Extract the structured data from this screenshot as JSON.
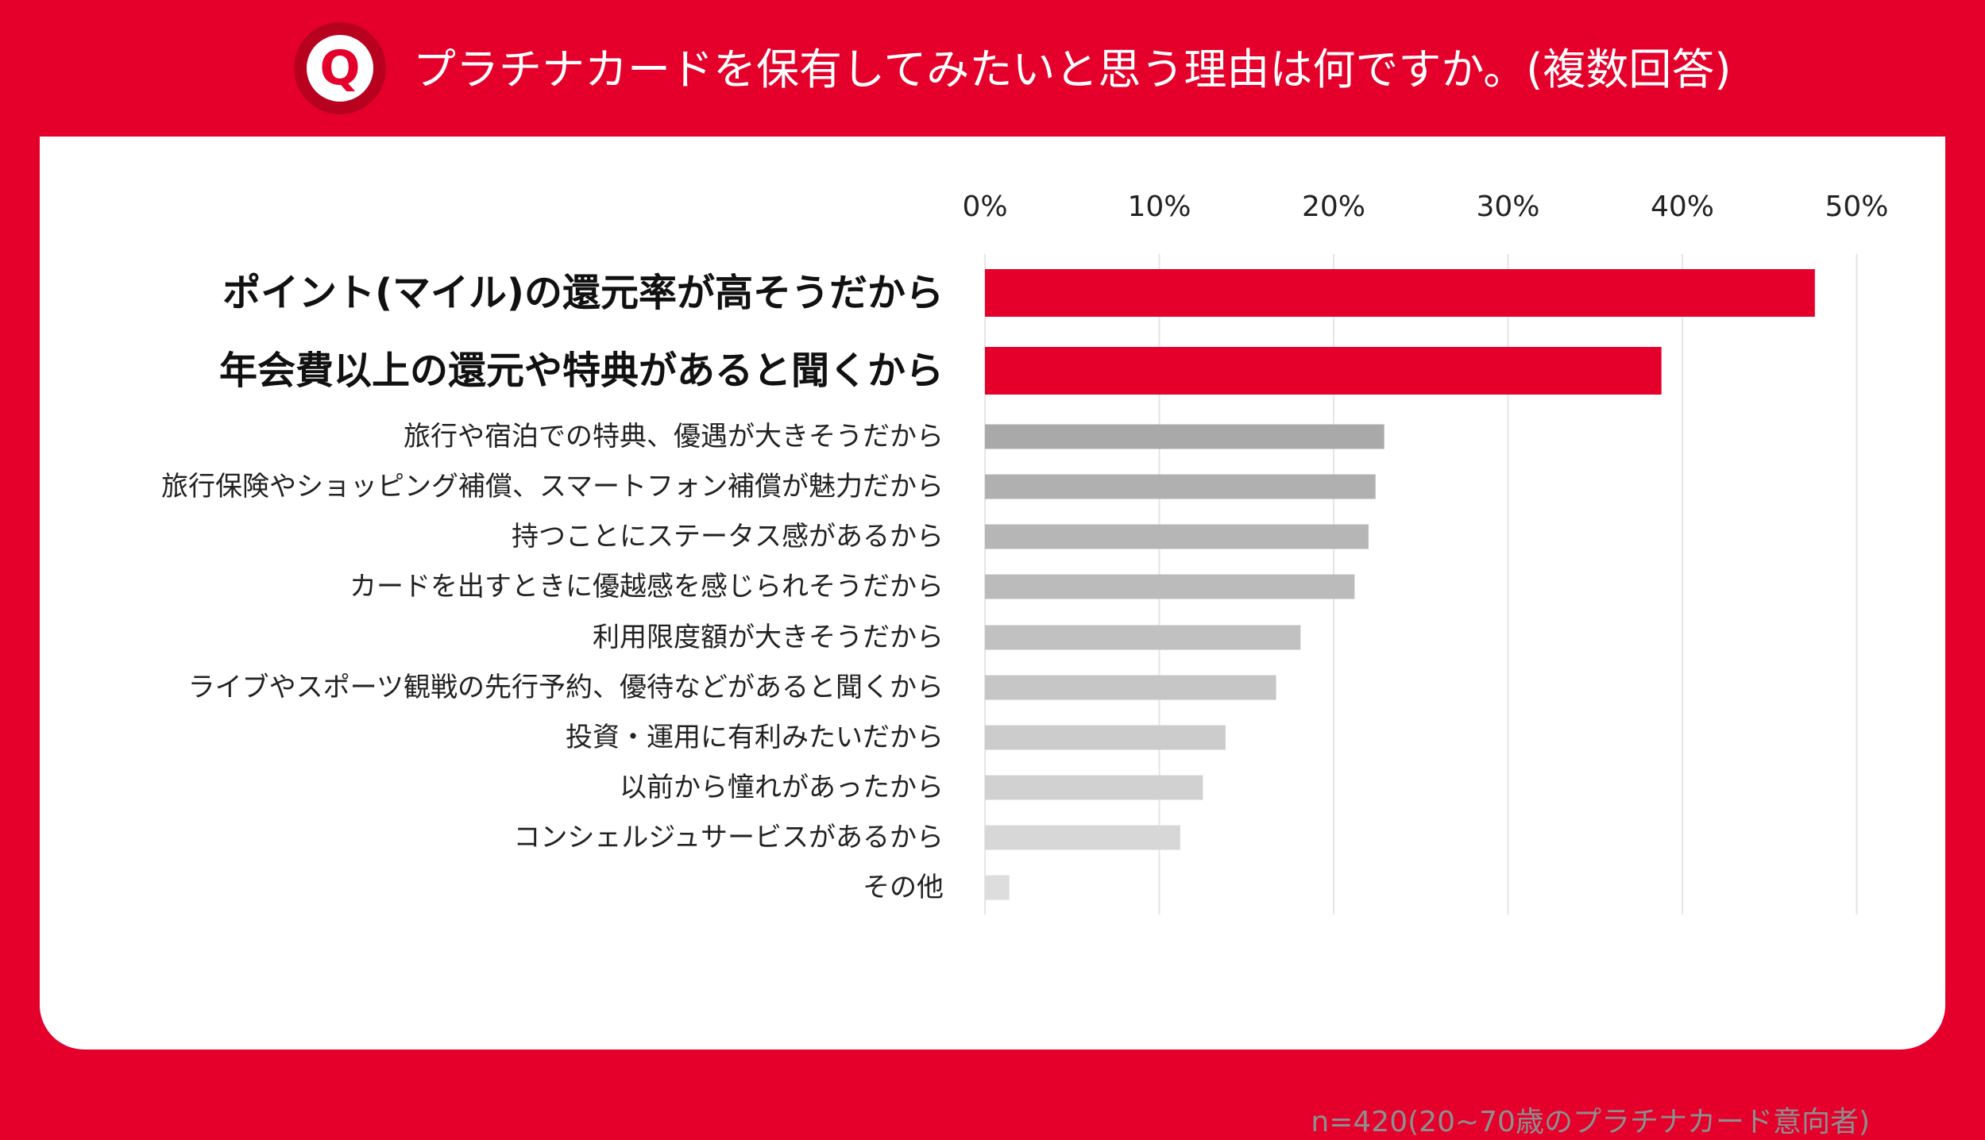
{
  "header": {
    "badge_letter": "Q",
    "title": "プラチナカードを保有してみたいと思う理由は何ですか。(複数回答)"
  },
  "colors": {
    "background": "#e4002b",
    "highlight_bar": "#e4002b",
    "gridline": "#e6e6e6"
  },
  "chart_data": {
    "type": "bar",
    "orientation": "horizontal",
    "title": "プラチナカードを保有してみたいと思う理由は何ですか。(複数回答)",
    "xlim": [
      0,
      50
    ],
    "x_ticks": [
      0,
      10,
      20,
      30,
      40,
      50
    ],
    "x_tick_labels": [
      "0%",
      "10%",
      "20%",
      "30%",
      "40%",
      "50%"
    ],
    "unit": "%",
    "grid": true,
    "categories": [
      "ポイント(マイル)の還元率が高そうだから",
      "年会費以上の還元や特典があると聞くから",
      "旅行や宿泊での特典、優遇が大きそうだから",
      "旅行保険やショッピング補償、スマートフォン補償が魅力だから",
      "持つことにステータス感があるから",
      "カードを出すときに優越感を感じられそうだから",
      "利用限度額が大きそうだから",
      "ライブやスポーツ観戦の先行予約、優待などがあると聞くから",
      "投資・運用に有利みたいだから",
      "以前から憧れがあったから",
      "コンシェルジュサービスがあるから",
      "その他"
    ],
    "values": [
      47.6,
      38.8,
      22.9,
      22.4,
      22.0,
      21.2,
      18.1,
      16.7,
      13.8,
      12.5,
      11.2,
      1.4
    ],
    "highlighted": [
      true,
      true,
      false,
      false,
      false,
      false,
      false,
      false,
      false,
      false,
      false,
      false
    ],
    "bar_colors": [
      "#e4002b",
      "#e4002b",
      "#a9a9a9",
      "#b0b0b0",
      "#b6b6b6",
      "#bbbbbb",
      "#c1c1c1",
      "#c6c6c6",
      "#cccccc",
      "#d1d1d1",
      "#d7d7d7",
      "#dddddd"
    ]
  },
  "footnote": "n=420(20~70歳のプラチナカード意向者)"
}
